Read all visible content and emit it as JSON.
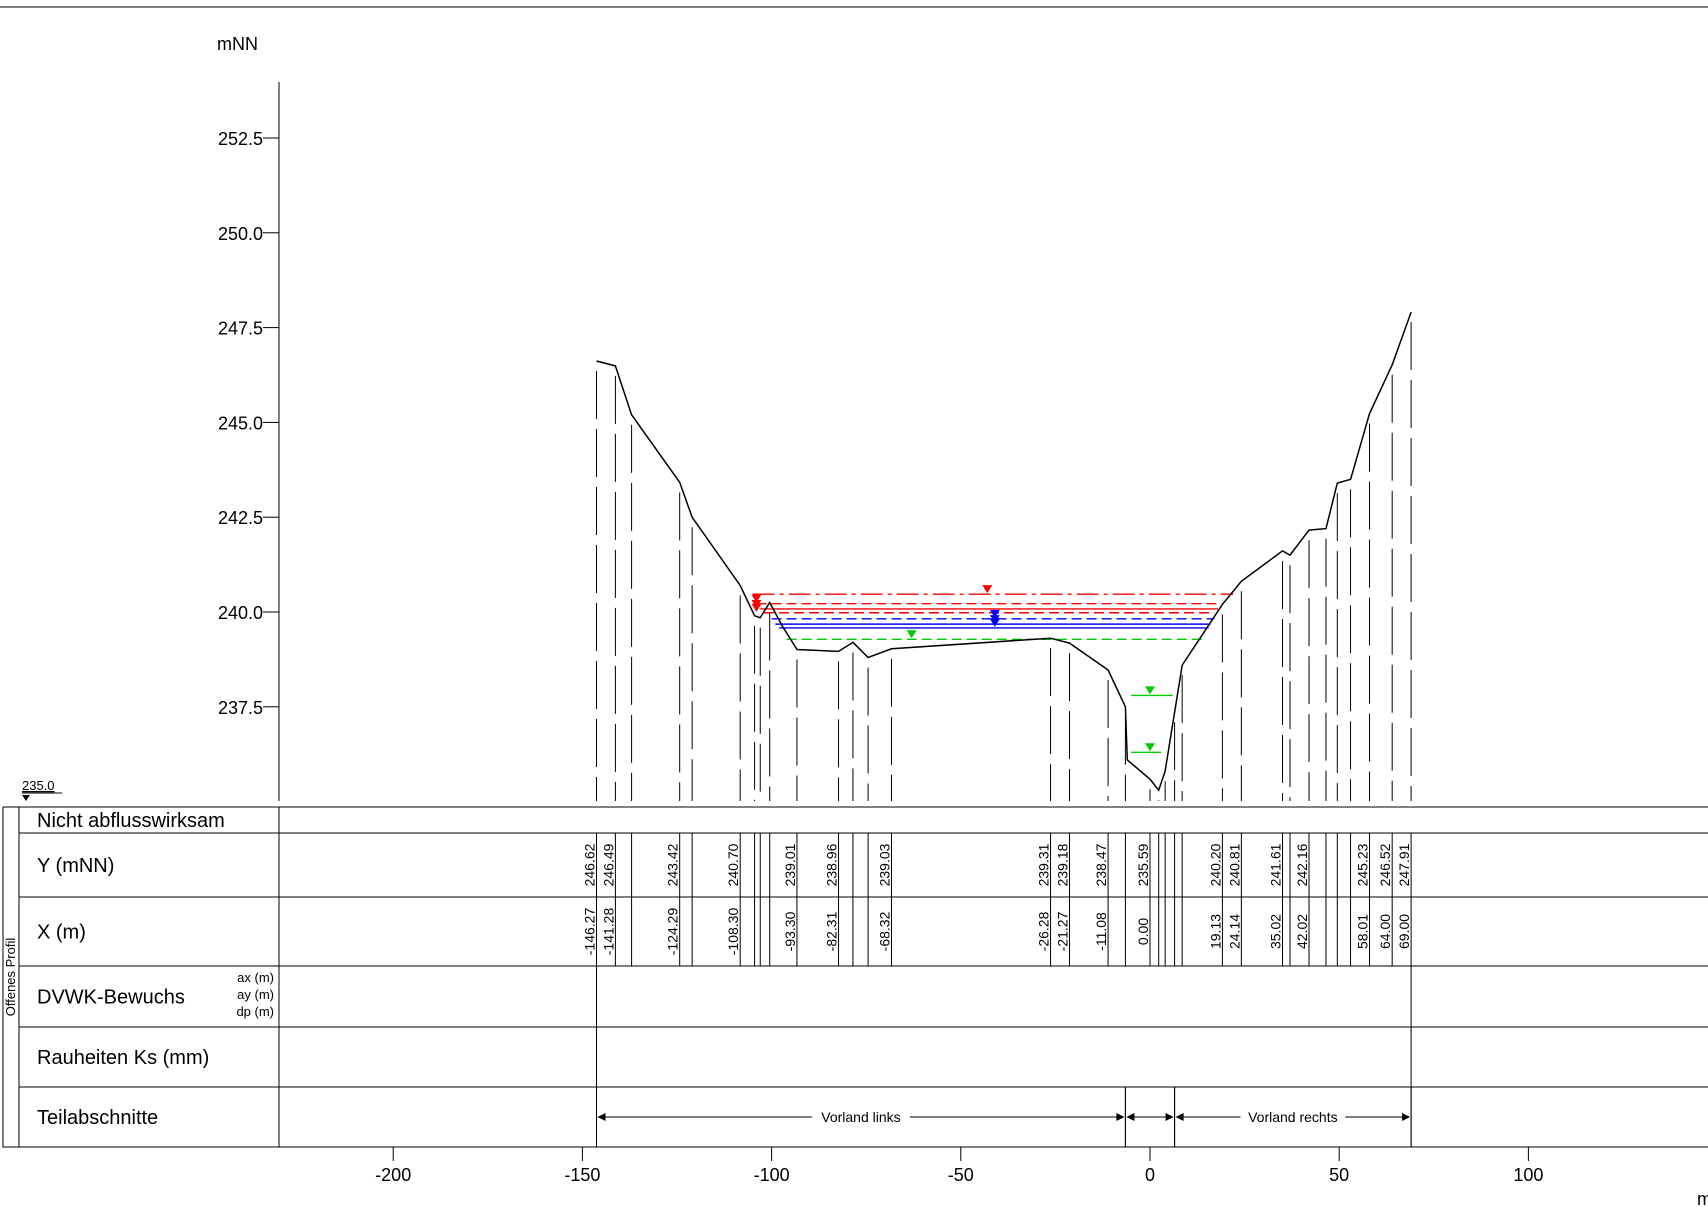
{
  "chart_data": {
    "type": "line",
    "title": "",
    "ylabel": "mNN",
    "xlabel": "m",
    "datum": "235.0",
    "y_ticks": [
      "252.5",
      "250.0",
      "247.5",
      "245.0",
      "242.5",
      "240.0",
      "237.5"
    ],
    "x_ticks": [
      "-200",
      "-150",
      "-100",
      "-50",
      "0",
      "50",
      "100"
    ],
    "ylim": [
      235.0,
      254.5
    ],
    "xlim": [
      -250,
      150
    ],
    "profile": [
      [
        -146.27,
        246.62
      ],
      [
        -141.28,
        246.49
      ],
      [
        -137.0,
        245.2
      ],
      [
        -124.29,
        243.42
      ],
      [
        -121.0,
        242.5
      ],
      [
        -108.3,
        240.7
      ],
      [
        -104.5,
        239.9
      ],
      [
        -103.0,
        239.85
      ],
      [
        -100.5,
        240.25
      ],
      [
        -97.0,
        239.6
      ],
      [
        -93.3,
        239.01
      ],
      [
        -82.31,
        238.96
      ],
      [
        -78.5,
        239.2
      ],
      [
        -74.5,
        238.8
      ],
      [
        -68.32,
        239.03
      ],
      [
        -26.28,
        239.31
      ],
      [
        -21.27,
        239.18
      ],
      [
        -11.08,
        238.47
      ],
      [
        -6.5,
        237.5
      ],
      [
        -6.0,
        236.1
      ],
      [
        0.0,
        235.59
      ],
      [
        2.3,
        235.3
      ],
      [
        4.0,
        235.8
      ],
      [
        8.5,
        238.6
      ],
      [
        19.13,
        240.2
      ],
      [
        24.14,
        240.81
      ],
      [
        35.02,
        241.61
      ],
      [
        37.0,
        241.5
      ],
      [
        42.02,
        242.16
      ],
      [
        46.5,
        242.2
      ],
      [
        49.5,
        243.4
      ],
      [
        53.0,
        243.5
      ],
      [
        58.01,
        245.23
      ],
      [
        64.0,
        246.52
      ],
      [
        69.0,
        247.91
      ]
    ],
    "verticals_x": [
      -146.27,
      -141.28,
      -137.0,
      -124.29,
      -121.0,
      -108.3,
      -104.5,
      -103.0,
      -100.5,
      -93.3,
      -82.31,
      -78.5,
      -74.5,
      -68.32,
      -26.28,
      -21.27,
      -11.08,
      -6.5,
      0.0,
      2.3,
      4.0,
      6.5,
      8.5,
      19.13,
      24.14,
      35.02,
      37.0,
      42.02,
      46.5,
      49.5,
      53.0,
      58.01,
      64.0,
      69.0
    ],
    "water_levels": [
      {
        "color": "#ff0000",
        "y": 240.47,
        "x": [
          -105,
          22
        ],
        "dash": "dashdot",
        "marker_x": -43
      },
      {
        "color": "#ff0000",
        "y": 240.22,
        "x": [
          -104,
          19
        ],
        "dash": "dash",
        "marker_x": -104
      },
      {
        "color": "#ff0000",
        "y": 240.08,
        "x": [
          -103,
          18
        ],
        "dash": "solid",
        "marker_x": -104
      },
      {
        "color": "#ff0000",
        "y": 239.98,
        "x": [
          -102,
          17
        ],
        "dash": "dash",
        "marker_x": -104
      },
      {
        "color": "#0000ff",
        "y": 239.82,
        "x": [
          -100,
          17
        ],
        "dash": "dash",
        "marker_x": -41
      },
      {
        "color": "#0000ff",
        "y": 239.68,
        "x": [
          -99,
          16
        ],
        "dash": "solid",
        "marker_x": -41
      },
      {
        "color": "#0000ff",
        "y": 239.58,
        "x": [
          -98,
          15.5
        ],
        "dash": "solid",
        "marker_x": -41
      },
      {
        "color": "#00cc00",
        "y": 239.28,
        "x": [
          -96,
          14
        ],
        "dash": "dash",
        "marker_x": -63
      },
      {
        "color": "#00cc00",
        "y": 237.8,
        "x": [
          -5,
          6
        ],
        "dash": "solid",
        "marker_x": 0
      },
      {
        "color": "#00cc00",
        "y": 236.3,
        "x": [
          -5,
          3
        ],
        "dash": "solid",
        "marker_x": 0
      }
    ],
    "table": {
      "side_label": "Offenes Profil",
      "rows": [
        {
          "label": "Nicht abflusswirksam"
        },
        {
          "label": "Y (mNN)",
          "values": [
            [
              -146.27,
              "246.62"
            ],
            [
              -141.28,
              "246.49"
            ],
            [
              -124.29,
              "243.42"
            ],
            [
              -108.3,
              "240.70"
            ],
            [
              -93.3,
              "239.01"
            ],
            [
              -82.31,
              "238.96"
            ],
            [
              -68.32,
              "239.03"
            ],
            [
              -26.28,
              "239.31"
            ],
            [
              -21.27,
              "239.18"
            ],
            [
              -11.08,
              "238.47"
            ],
            [
              0.0,
              "235.59"
            ],
            [
              19.13,
              "240.20"
            ],
            [
              24.14,
              "240.81"
            ],
            [
              35.02,
              "241.61"
            ],
            [
              42.02,
              "242.16"
            ],
            [
              58.01,
              "245.23"
            ],
            [
              64.0,
              "246.52"
            ],
            [
              69.0,
              "247.91"
            ]
          ]
        },
        {
          "label": "X (m)",
          "values": [
            [
              -146.27,
              "-146.27"
            ],
            [
              -141.28,
              "-141.28"
            ],
            [
              -124.29,
              "-124.29"
            ],
            [
              -108.3,
              "-108.30"
            ],
            [
              -93.3,
              "-93.30"
            ],
            [
              -82.31,
              "-82.31"
            ],
            [
              -68.32,
              "-68.32"
            ],
            [
              -26.28,
              "-26.28"
            ],
            [
              -21.27,
              "-21.27"
            ],
            [
              -11.08,
              "-11.08"
            ],
            [
              0.0,
              "0.00"
            ],
            [
              19.13,
              "19.13"
            ],
            [
              24.14,
              "24.14"
            ],
            [
              35.02,
              "35.02"
            ],
            [
              42.02,
              "42.02"
            ],
            [
              58.01,
              "58.01"
            ],
            [
              64.0,
              "64.00"
            ],
            [
              69.0,
              "69.00"
            ]
          ]
        },
        {
          "label": "DVWK-Bewuchs",
          "sublabels": [
            "ax (m)",
            "ay (m)",
            "dp (m)"
          ]
        },
        {
          "label": "Rauheiten Ks (mm)"
        },
        {
          "label": "Teilabschnitte",
          "segments": [
            {
              "x": [
                -146.27,
                -6.5
              ],
              "text": "Vorland links"
            },
            {
              "x": [
                -6.5,
                6.5
              ],
              "text": ""
            },
            {
              "x": [
                6.5,
                69.0
              ],
              "text": "Vorland rechts"
            }
          ]
        }
      ]
    }
  }
}
